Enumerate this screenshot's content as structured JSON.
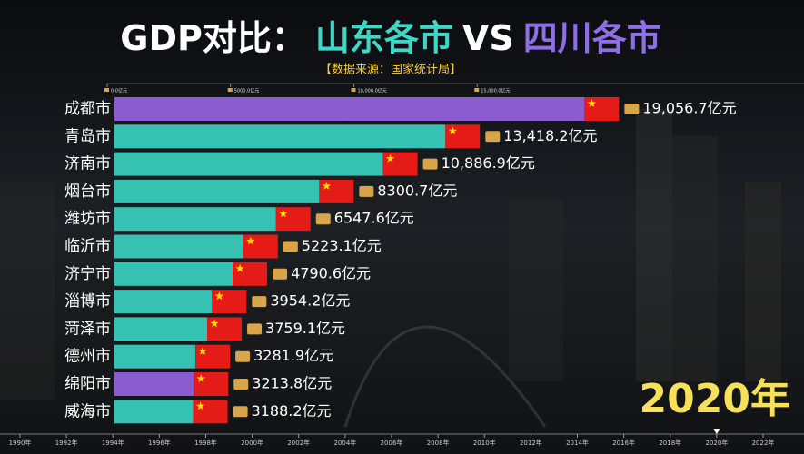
{
  "chart_data": {
    "type": "bar",
    "orientation": "horizontal",
    "title": [
      {
        "text": "GDP对比：",
        "color": "#ffffff"
      },
      {
        "text": "山东各市",
        "color": "#3ed6c4"
      },
      {
        "text": "VS",
        "color": "#ffffff"
      },
      {
        "text": "四川各市",
        "color": "#8f6fe6"
      }
    ],
    "subtitle": "【数据来源：国家统计局】",
    "categories": [
      "成都市",
      "青岛市",
      "济南市",
      "烟台市",
      "潍坊市",
      "临沂市",
      "济宁市",
      "淄博市",
      "菏泽市",
      "德州市",
      "绵阳市",
      "威海市"
    ],
    "values": [
      19056.7,
      13418.2,
      10886.9,
      8300.7,
      6547.6,
      5223.1,
      4790.6,
      3954.2,
      3759.1,
      3281.9,
      3213.8,
      3188.2
    ],
    "value_labels": [
      "19,056.7亿元",
      "13,418.2亿元",
      "10,886.9亿元",
      "8300.7亿元",
      "6547.6亿元",
      "5223.1亿元",
      "4790.6亿元",
      "3954.2亿元",
      "3759.1亿元",
      "3281.9亿元",
      "3213.8亿元",
      "3188.2亿元"
    ],
    "colors": [
      "#8a5cd0",
      "#35c2b2",
      "#35c2b2",
      "#35c2b2",
      "#35c2b2",
      "#35c2b2",
      "#35c2b2",
      "#35c2b2",
      "#35c2b2",
      "#35c2b2",
      "#8a5cd0",
      "#35c2b2"
    ],
    "xlim": [
      0,
      20000
    ],
    "xticks": [
      {
        "value": 0,
        "label": "0.0亿元"
      },
      {
        "value": 5000,
        "label": "5000.0亿元"
      },
      {
        "value": 10000,
        "label": "10,000.0亿元"
      },
      {
        "value": 15000,
        "label": "15,000.0亿元"
      }
    ],
    "timeline": {
      "xlim": [
        1990,
        2022
      ],
      "xticks": [
        {
          "value": 1990,
          "label": "1990年"
        },
        {
          "value": 1992,
          "label": "1992年"
        },
        {
          "value": 1994,
          "label": "1994年"
        },
        {
          "value": 1996,
          "label": "1996年"
        },
        {
          "value": 1998,
          "label": "1998年"
        },
        {
          "value": 2000,
          "label": "2000年"
        },
        {
          "value": 2002,
          "label": "2002年"
        },
        {
          "value": 2004,
          "label": "2004年"
        },
        {
          "value": 2006,
          "label": "2006年"
        },
        {
          "value": 2008,
          "label": "2008年"
        },
        {
          "value": 2010,
          "label": "2010年"
        },
        {
          "value": 2012,
          "label": "2012年"
        },
        {
          "value": 2014,
          "label": "2014年"
        },
        {
          "value": 2016,
          "label": "2016年"
        },
        {
          "value": 2018,
          "label": "2018年"
        },
        {
          "value": 2020,
          "label": "2020年"
        },
        {
          "value": 2022,
          "label": "2022年"
        }
      ],
      "current": {
        "value": 2020,
        "label": "2020年"
      }
    }
  }
}
